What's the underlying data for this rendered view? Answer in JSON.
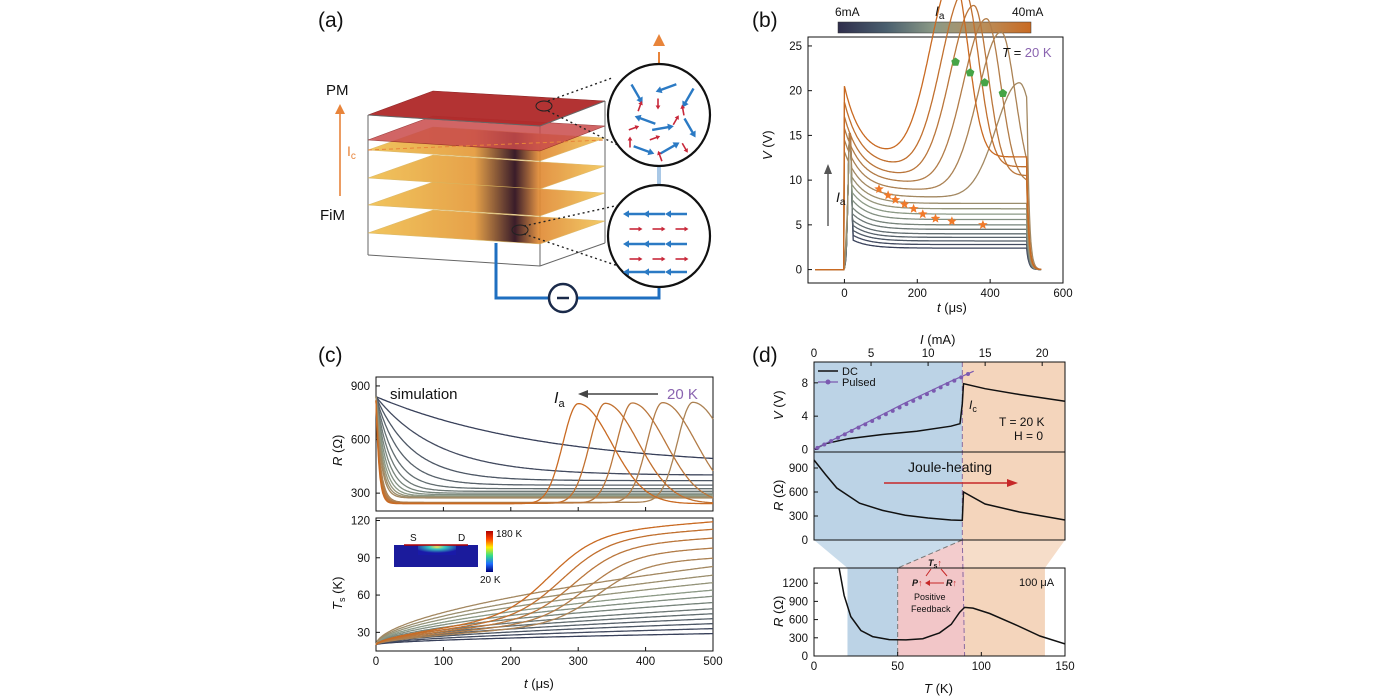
{
  "colors": {
    "low": "#38405a",
    "mid": "#8c9a86",
    "high": "#c96a22",
    "green": "#46a446",
    "star": "#f07a2a",
    "purple": "#8a64b0",
    "blueBg": "#bcd3e6",
    "orangeBg": "#f4d5bc",
    "pinkBg": "#f2c6c8",
    "blueLine": "#1f6fc0",
    "redArrow": "#c62828",
    "orangeArrow": "#e8843a"
  },
  "panel_a": {
    "label": "(a)",
    "pm": "PM",
    "fim": "FiM",
    "ic": "I",
    "ic_sub": "c"
  },
  "panel_b": {
    "label": "(b)",
    "colorbar_low": "6mA",
    "colorbar_high": "40mA",
    "colorbar_title": "I",
    "colorbar_title_sub": "a",
    "temp_prefix": "T = ",
    "temp_value": "20 K",
    "arrow_label": "I",
    "arrow_label_sub": "a"
  },
  "panel_c": {
    "label": "(c)",
    "simulation": "simulation",
    "arrow_label": "I",
    "arrow_label_sub": "a",
    "temp": "20 K",
    "inset_s": "S",
    "inset_d": "D",
    "inset_high": "180 K",
    "inset_low": "20 K"
  },
  "panel_d": {
    "label": "(d)",
    "legend_dc": "DC",
    "legend_pulsed": "Pulsed",
    "ic": "I",
    "ic_sub": "c",
    "temp_note": "T = 20 K",
    "field_note": "H = 0",
    "joule": "Joule-heating",
    "current_note": "100 μA",
    "feedback_ts": "T",
    "feedback_ts_sub": "s",
    "feedback_p": "P",
    "feedback_r": "R",
    "feedback_line1": "Positive",
    "feedback_line2": "Feedback"
  },
  "chart_data": [
    {
      "id": "b",
      "type": "line",
      "title": "",
      "xlabel": "t (μs)",
      "ylabel": "V (V)",
      "xlim": [
        -100,
        600
      ],
      "ylim": [
        -1.5,
        26
      ],
      "xticks": [
        0,
        200,
        400,
        600
      ],
      "yticks": [
        0,
        5,
        10,
        15,
        20,
        25
      ],
      "series_note": "17 traces, applied current 6–40 mA, pulse from 0 to 500 μs",
      "plateau_levels": [
        2.4,
        2.8,
        3.2,
        3.6,
        4.0,
        4.5,
        5.0,
        5.6,
        6.2,
        6.8,
        7.4,
        8.1,
        8.9,
        9.7,
        10.5,
        11.5,
        12.6
      ],
      "peak_times": [
        null,
        null,
        null,
        null,
        null,
        null,
        null,
        null,
        null,
        null,
        null,
        480,
        430,
        390,
        355,
        330,
        300
      ],
      "peak_markers": {
        "t": [
          305,
          345,
          385,
          435
        ],
        "v": [
          23.2,
          22.0,
          20.9,
          19.7
        ]
      },
      "onset_markers": {
        "t": [
          95,
          120,
          140,
          165,
          190,
          215,
          250,
          295,
          380
        ],
        "v": [
          9.0,
          8.3,
          7.8,
          7.3,
          6.8,
          6.2,
          5.7,
          5.4,
          5.0
        ]
      }
    },
    {
      "id": "c_top",
      "type": "line",
      "title": "simulation",
      "xlabel": "",
      "ylabel": "R (Ω)",
      "xlim": [
        0,
        500
      ],
      "ylim": [
        200,
        950
      ],
      "yticks": [
        300,
        600,
        900
      ],
      "series_note": "R(t) curves, I_a increasing leftward",
      "final_values": [
        440,
        400,
        370,
        345,
        325,
        310,
        300,
        292,
        285,
        280,
        276,
        273,
        270,
        268,
        266,
        264,
        262
      ],
      "peak_times": [
        null,
        null,
        null,
        null,
        null,
        null,
        null,
        null,
        null,
        null,
        null,
        null,
        470,
        425,
        380,
        340,
        300
      ]
    },
    {
      "id": "c_bottom",
      "type": "line",
      "title": "",
      "xlabel": "t (μs)",
      "ylabel": "T_s (K)",
      "xlim": [
        0,
        500
      ],
      "ylim": [
        15,
        122
      ],
      "xticks": [
        0,
        100,
        200,
        300,
        400,
        500
      ],
      "yticks": [
        30,
        60,
        90,
        120
      ],
      "final_values": [
        29,
        33,
        37,
        41,
        45,
        49,
        54,
        59,
        64,
        70,
        76,
        83,
        90,
        98,
        106,
        113,
        119
      ]
    },
    {
      "id": "d_top",
      "type": "line",
      "xlabel": "I (mA)",
      "ylabel": "V (V)",
      "xlim": [
        0,
        22
      ],
      "ylim": [
        -0.3,
        10.5
      ],
      "xticks": [
        0,
        5,
        10,
        15,
        20
      ],
      "yticks": [
        0,
        4,
        8
      ],
      "ic": 13,
      "series": [
        {
          "name": "DC",
          "x": [
            0,
            1,
            3,
            6,
            9,
            12,
            12.8,
            13,
            13.1,
            15,
            18,
            22
          ],
          "y": [
            0,
            0.7,
            1.3,
            1.8,
            2.2,
            2.8,
            3.1,
            5.5,
            7.9,
            7.3,
            6.6,
            5.8
          ]
        },
        {
          "name": "Pulsed",
          "x": [
            0,
            2,
            4,
            6,
            8,
            10,
            12,
            13,
            14
          ],
          "y": [
            0,
            1.4,
            2.8,
            4.2,
            5.6,
            6.9,
            8.2,
            8.8,
            9.4
          ]
        }
      ]
    },
    {
      "id": "d_mid",
      "type": "line",
      "xlabel": "",
      "ylabel": "R (Ω)",
      "xlim": [
        0,
        22
      ],
      "ylim": [
        0,
        1100
      ],
      "yticks": [
        0,
        300,
        600,
        900
      ],
      "series": [
        {
          "name": "DC",
          "x": [
            0,
            1,
            2,
            4,
            6,
            8,
            10,
            12,
            13,
            13.1,
            15,
            18,
            22
          ],
          "y": [
            1000,
            820,
            650,
            460,
            370,
            310,
            275,
            250,
            245,
            600,
            450,
            350,
            250
          ]
        }
      ]
    },
    {
      "id": "d_bottom",
      "type": "line",
      "xlabel": "T (K)",
      "ylabel": "R (Ω)",
      "xlim": [
        0,
        150
      ],
      "ylim": [
        0,
        1450
      ],
      "xticks": [
        0,
        50,
        100,
        150
      ],
      "yticks": [
        0,
        300,
        600,
        900,
        1200
      ],
      "series": [
        {
          "name": "R(T)",
          "x": [
            15,
            18,
            22,
            28,
            35,
            45,
            55,
            65,
            75,
            82,
            87,
            90,
            95,
            105,
            120,
            135,
            150
          ],
          "y": [
            1450,
            1000,
            650,
            420,
            320,
            270,
            265,
            285,
            380,
            520,
            720,
            800,
            790,
            700,
            520,
            330,
            200
          ]
        }
      ]
    }
  ]
}
